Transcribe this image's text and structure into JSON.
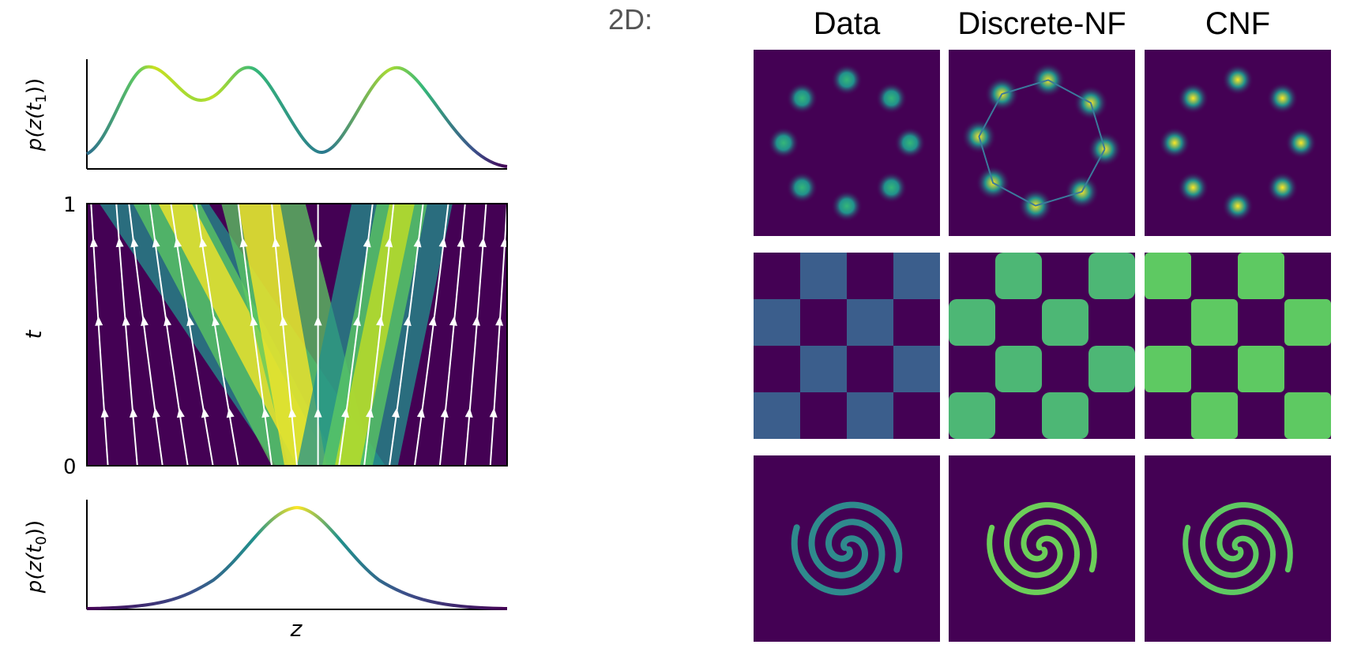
{
  "left": {
    "top_ylabel": "p(z(t",
    "top_ylabel_sub": "1",
    "top_ylabel_end": "))",
    "mid_ylabel": "t",
    "mid_tick_top": "1",
    "mid_tick_bottom": "0",
    "bottom_ylabel": "p(z(t",
    "bottom_ylabel_sub": "0",
    "bottom_ylabel_end": "))",
    "xlabel": "z"
  },
  "right": {
    "heading": "2D:",
    "columns": [
      "Data",
      "Discrete-NF",
      "CNF"
    ],
    "rows": [
      "eight-gaussians",
      "checkerboard",
      "two-spirals"
    ]
  },
  "colors": {
    "background_dark": "#440154",
    "viridis": [
      "#440154",
      "#3b528b",
      "#21918c",
      "#5ec962",
      "#fde725"
    ]
  }
}
